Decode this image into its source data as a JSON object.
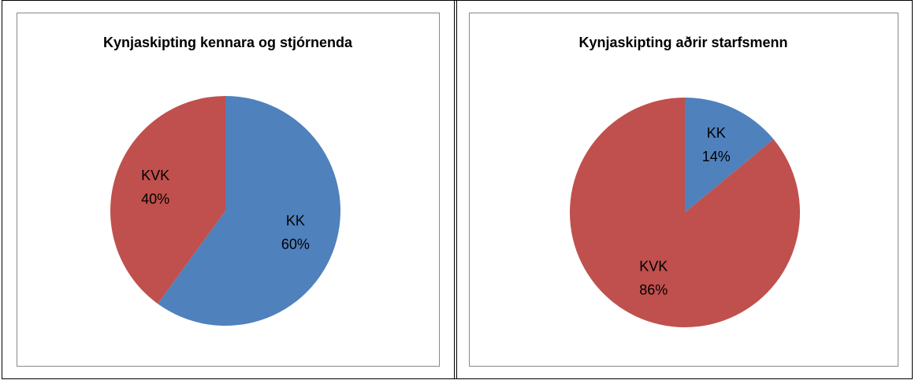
{
  "chart_data": [
    {
      "type": "pie",
      "title": "Kynjaskipting kennara og stjórnenda",
      "categories": [
        "KK",
        "KVK"
      ],
      "values": [
        60,
        40
      ],
      "value_labels": [
        "60%",
        "40%"
      ],
      "colors": [
        "#4f81bd",
        "#c0504d"
      ]
    },
    {
      "type": "pie",
      "title": "Kynjaskipting aðrir starfsmenn",
      "categories": [
        "KK",
        "KVK"
      ],
      "values": [
        14,
        86
      ],
      "value_labels": [
        "14%",
        "86%"
      ],
      "colors": [
        "#4f81bd",
        "#c0504d"
      ]
    }
  ]
}
